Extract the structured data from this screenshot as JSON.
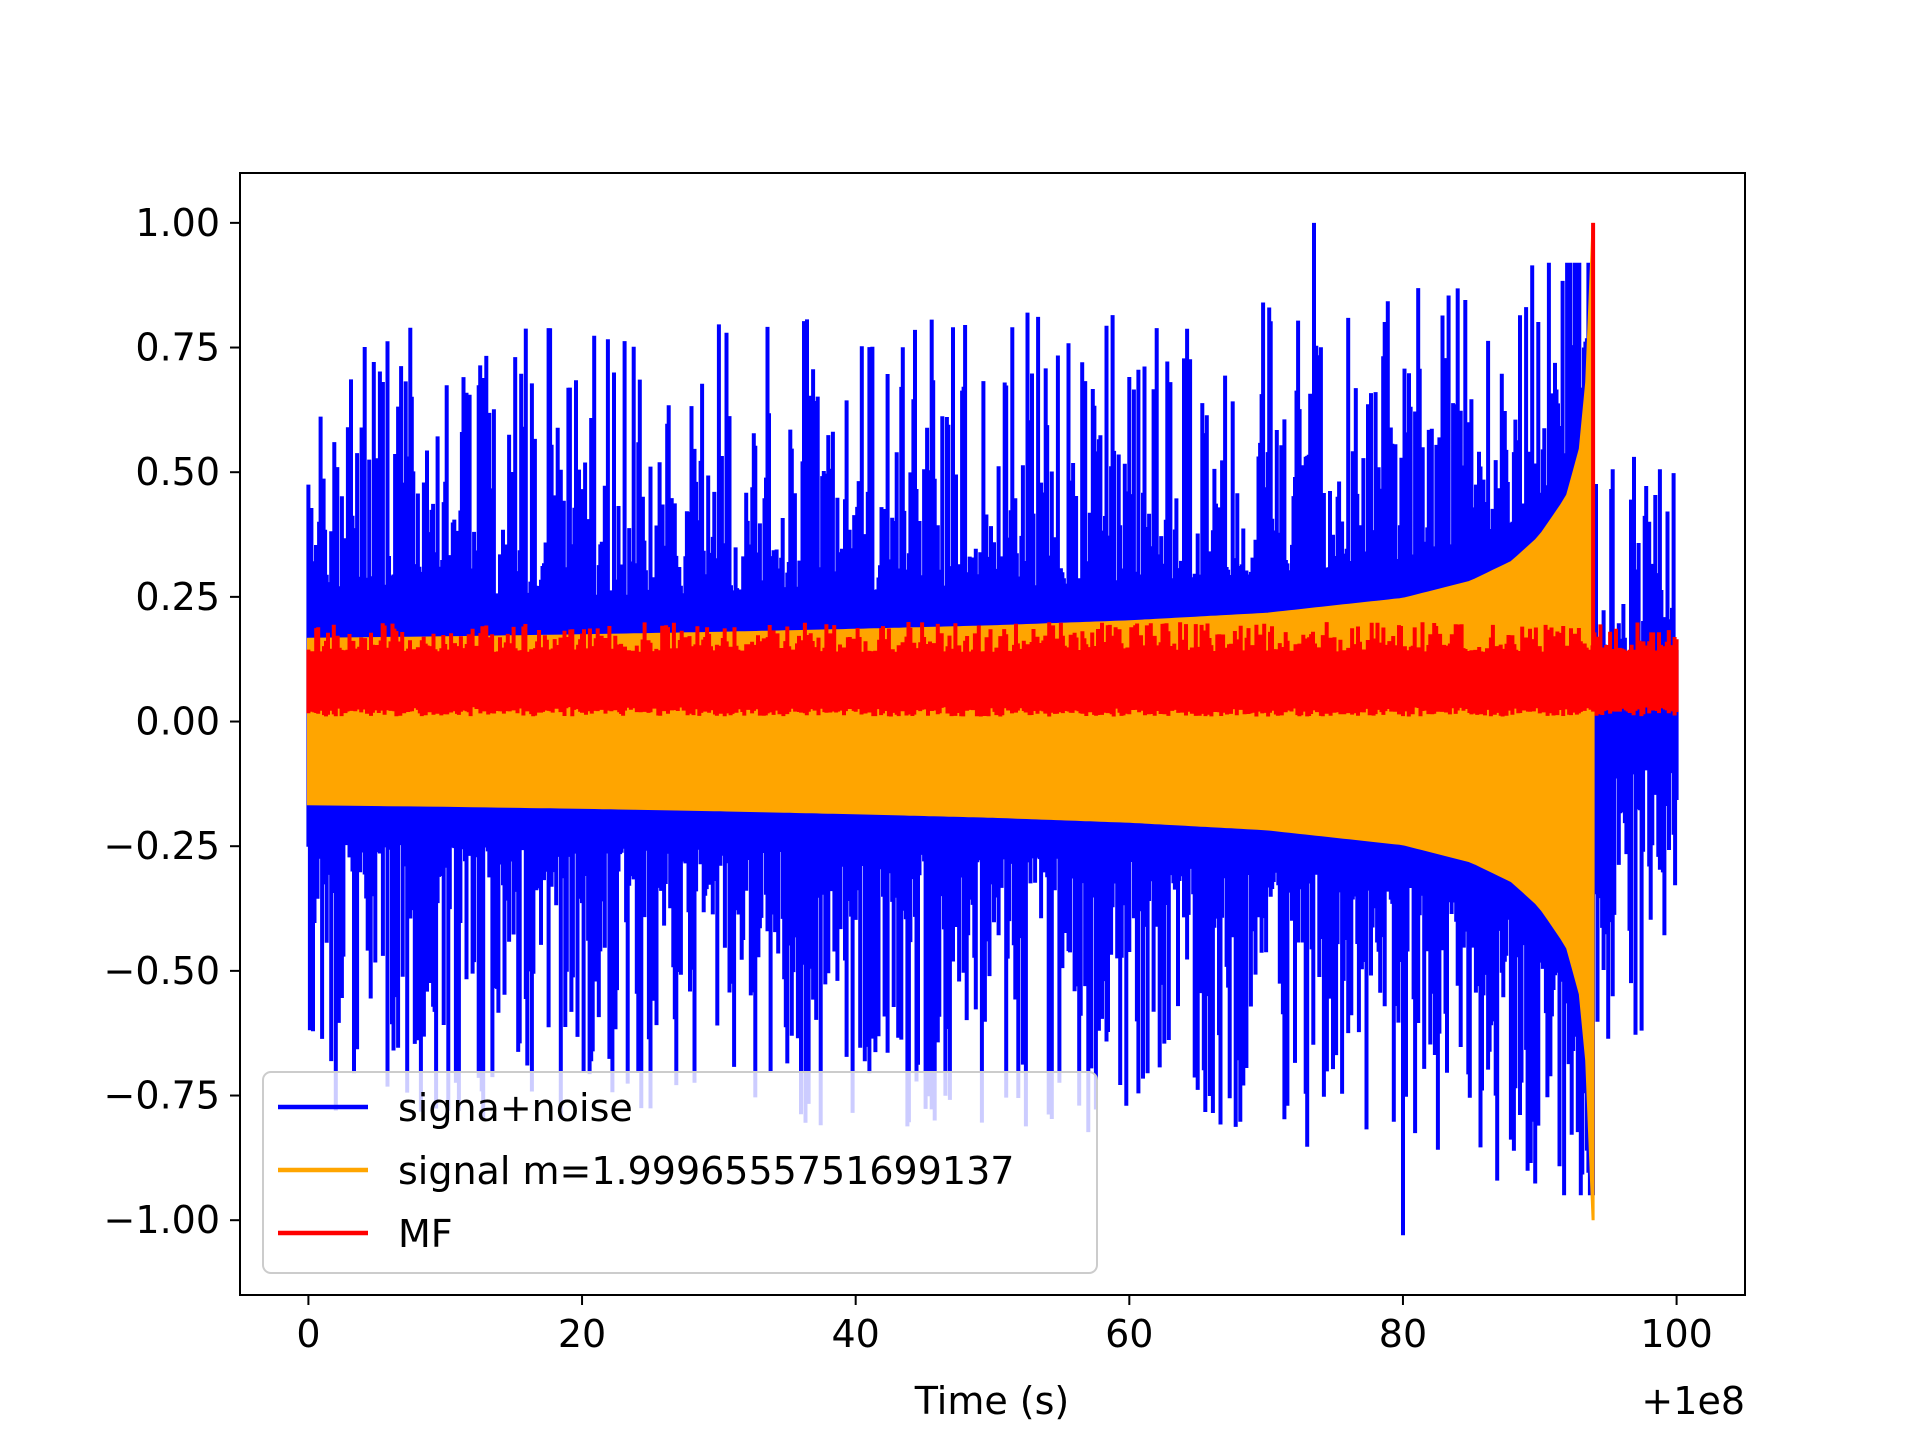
{
  "chart_data": {
    "type": "line",
    "title": "",
    "xlabel": "Time (s)",
    "ylabel": "",
    "x_offset_label": "+1e8",
    "xlim": [
      -5,
      105
    ],
    "ylim": [
      -1.15,
      1.1
    ],
    "x_ticks": [
      0,
      20,
      40,
      60,
      80,
      100
    ],
    "x_tick_labels": [
      "0",
      "20",
      "40",
      "60",
      "80",
      "100"
    ],
    "y_ticks": [
      1.0,
      0.75,
      0.5,
      0.25,
      0.0,
      -0.25,
      -0.5,
      -0.75,
      -1.0
    ],
    "y_tick_labels": [
      "1.00",
      "0.75",
      "0.50",
      "0.25",
      "0.00",
      "−0.25",
      "−0.50",
      "−0.75",
      "−1.00"
    ],
    "grid": false,
    "legend_position": "lower-left",
    "series": [
      {
        "name": "signa+noise",
        "color": "#0000ff",
        "x_range": [
          0,
          100
        ],
        "peak_max": 1.0,
        "peak_max_x": 73.5,
        "peak_min": -1.03,
        "peak_min_x": 80.0,
        "typical_max": 0.55,
        "typical_min": -0.55
      },
      {
        "name": "signal m=1.9996555751699137",
        "color": "#ffa500",
        "x_range": [
          0,
          93.9
        ],
        "envelope": {
          "x": [
            0,
            10,
            20,
            30,
            40,
            50,
            60,
            70,
            80,
            85,
            88,
            90,
            92,
            93,
            93.5,
            93.9
          ],
          "amplitude": [
            0.165,
            0.168,
            0.172,
            0.177,
            0.183,
            0.19,
            0.2,
            0.215,
            0.245,
            0.28,
            0.32,
            0.37,
            0.45,
            0.55,
            0.7,
            1.0
          ]
        }
      },
      {
        "name": "MF",
        "color": "#ff0000",
        "x_range": [
          0,
          100
        ],
        "baseline_range": [
          0.01,
          0.18
        ],
        "peak_value": 1.0,
        "peak_x": 93.9
      }
    ]
  }
}
